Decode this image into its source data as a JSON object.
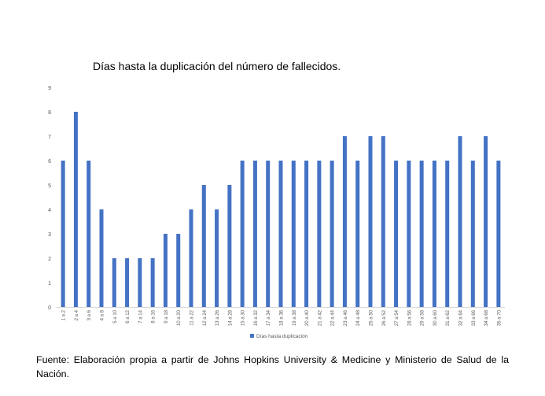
{
  "chart_data": {
    "type": "bar",
    "title": "Días hasta la duplicación del número de fallecidos.",
    "categories": [
      "1 a 2",
      "2 a 4",
      "3 a 6",
      "4 a 8",
      "5 a 10",
      "6 a 12",
      "7 a 14",
      "8 a 16",
      "9 a 18",
      "10 a 20",
      "11 a 22",
      "12 a 24",
      "13 a 26",
      "14 a 28",
      "15 a 30",
      "16 a 32",
      "17 a 34",
      "18 a 36",
      "19 a 38",
      "20 a 40",
      "21 a 42",
      "22 a 44",
      "23 a 46",
      "24 a 48",
      "25 a 50",
      "26 a 52",
      "27 a 54",
      "28 a 56",
      "29 a 58",
      "30 a 60",
      "31 a 62",
      "32 a 64",
      "33 a 66",
      "34 a 68",
      "35 a 70"
    ],
    "series": [
      {
        "name": "Días hasta duplicación",
        "values": [
          6,
          8,
          6,
          4,
          2,
          2,
          2,
          2,
          3,
          3,
          4,
          5,
          4,
          5,
          6,
          6,
          6,
          6,
          6,
          6,
          6,
          6,
          7,
          6,
          7,
          7,
          6,
          6,
          6,
          6,
          6,
          7,
          6,
          7,
          6
        ]
      }
    ],
    "ylim": [
      0,
      9
    ],
    "yticks": [
      0,
      1,
      2,
      3,
      4,
      5,
      6,
      7,
      8,
      9
    ],
    "grid": false,
    "legend_position": "bottom",
    "colors": {
      "bar": "#4472C4",
      "axis": "#d9d9d9",
      "tick_text": "#595959"
    }
  },
  "source": "Fuente: Elaboración propia a partir de Johns Hopkins University & Medicine y Ministerio de Salud de la Nación."
}
